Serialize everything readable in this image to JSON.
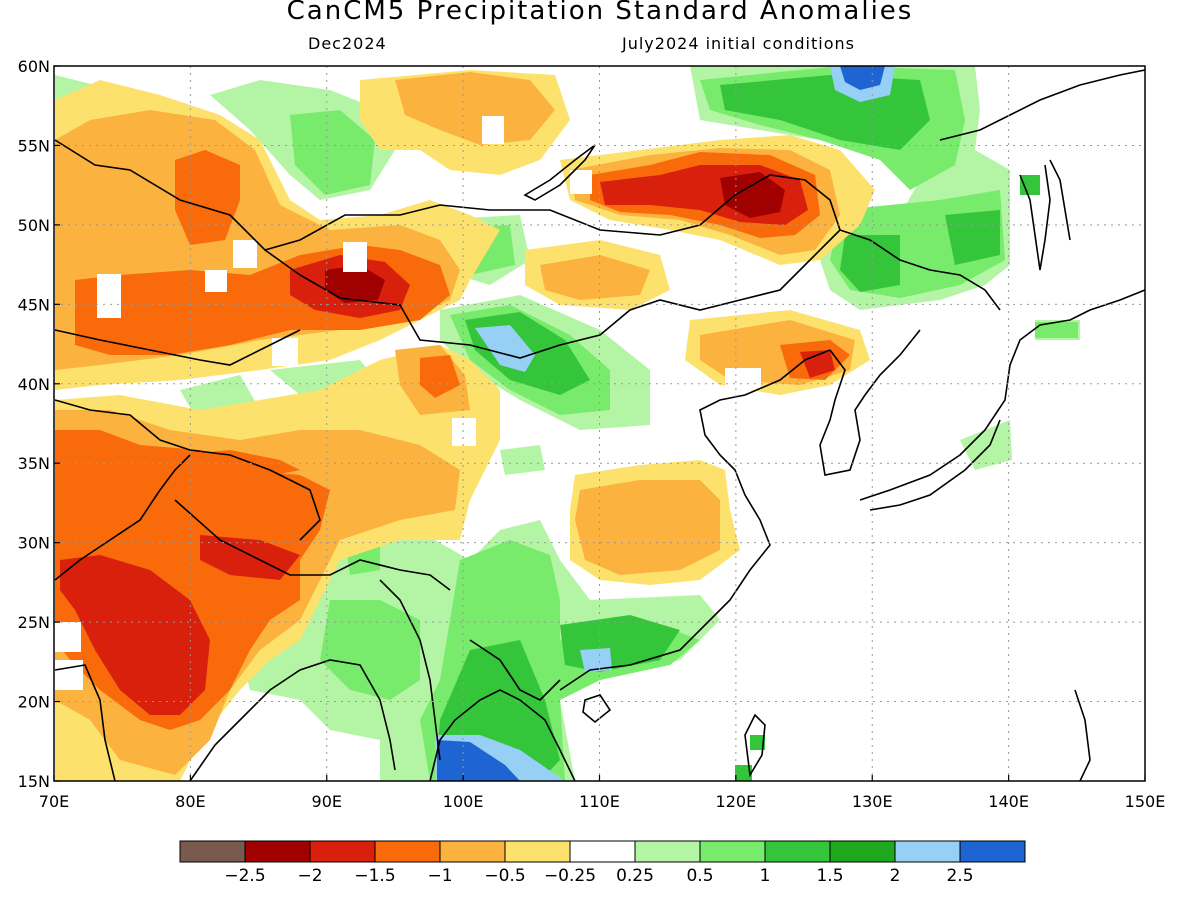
{
  "title": "CanCM5 Precipitation Standard Anomalies",
  "subtitle_left": "Dec2024",
  "subtitle_right": "July2024 initial conditions",
  "map": {
    "lon_range": [
      70,
      150
    ],
    "lat_range": [
      15,
      60
    ],
    "lon_ticks": [
      "70E",
      "80E",
      "90E",
      "100E",
      "110E",
      "120E",
      "130E",
      "140E",
      "150E"
    ],
    "lat_ticks": [
      "15N",
      "20N",
      "25N",
      "30N",
      "35N",
      "40N",
      "45N",
      "50N",
      "55N",
      "60N"
    ],
    "grid": "dotted"
  },
  "colorbar": {
    "colors": [
      "#7a5a4e",
      "#a00000",
      "#d8200d",
      "#f96a0b",
      "#fbb23e",
      "#fce26c",
      "#ffffff",
      "#b4f5a5",
      "#78ea6c",
      "#35c53b",
      "#1ea81e",
      "#96d0f5",
      "#1e64d2"
    ],
    "labels": [
      "−2.5",
      "−2",
      "−1.5",
      "−1",
      "−0.5",
      "−0.25",
      "0.25",
      "0.5",
      "1",
      "1.5",
      "2",
      "2.5"
    ]
  },
  "colors": {
    "frame": "#000000",
    "grid": "#999999"
  }
}
